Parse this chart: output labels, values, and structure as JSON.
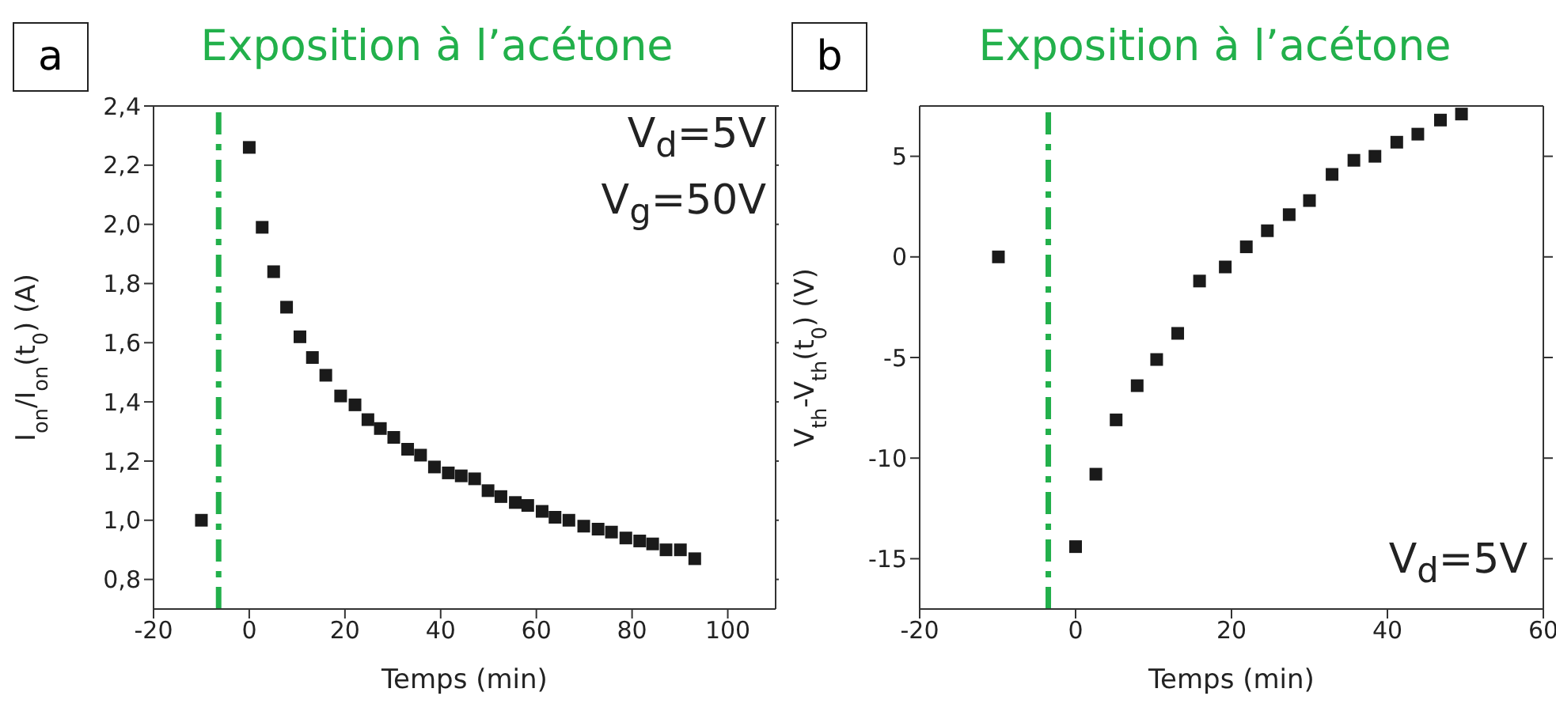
{
  "chart_data": [
    {
      "type": "scatter",
      "title": "Exposition à l’acétone",
      "xlabel": "Temps (min)",
      "ylabel": "I$_{on}$/I$_{on}$(t$_{0}$) (A)",
      "annotations": [
        "a",
        "V$_{d}$=5V",
        "V$_{g}$=50V"
      ],
      "xlim": [
        -20,
        110
      ],
      "xticks": [
        -20,
        0,
        20,
        40,
        60,
        80,
        100
      ],
      "ylim": [
        0.7,
        2.4
      ],
      "yticks": [
        {
          "value": 0.8,
          "label": "0,8"
        },
        {
          "value": 1.0,
          "label": "1,0"
        },
        {
          "value": 1.2,
          "label": "1,2"
        },
        {
          "value": 1.4,
          "label": "1,4"
        },
        {
          "value": 1.6,
          "label": "1,6"
        },
        {
          "value": 1.8,
          "label": "1,8"
        },
        {
          "value": 2.0,
          "label": "2,0"
        },
        {
          "value": 2.2,
          "label": "2,2"
        },
        {
          "value": 2.4,
          "label": "2,4"
        }
      ],
      "marker": "square",
      "ref_lines": [
        {
          "axis": "x",
          "value": -6.4,
          "color": "#22b04b",
          "line_style": "dashdot"
        }
      ],
      "series": [
        {
          "color": "#1a1a1a",
          "x": [
            -10,
            0,
            2.7,
            5.1,
            7.8,
            10.6,
            13.2,
            16,
            19.1,
            22.1,
            24.8,
            27.4,
            30.2,
            33.1,
            35.8,
            38.7,
            41.6,
            44.3,
            47.1,
            49.9,
            52.6,
            55.6,
            58.2,
            61.2,
            63.9,
            66.8,
            69.9,
            72.9,
            75.7,
            78.7,
            81.6,
            84.3,
            87.1,
            90.1,
            93.1
          ],
          "values": [
            1.0,
            2.26,
            1.99,
            1.84,
            1.72,
            1.62,
            1.55,
            1.49,
            1.42,
            1.39,
            1.34,
            1.31,
            1.28,
            1.24,
            1.22,
            1.18,
            1.16,
            1.15,
            1.14,
            1.1,
            1.08,
            1.06,
            1.05,
            1.03,
            1.01,
            1.0,
            0.98,
            0.97,
            0.96,
            0.94,
            0.93,
            0.92,
            0.9,
            0.9,
            0.87
          ]
        }
      ]
    },
    {
      "type": "scatter",
      "title": "Exposition à l’acétone",
      "xlabel": "Temps (min)",
      "ylabel": "V$_{th}$-V$_{th}$(t$_{0}$) (V)",
      "annotations": [
        "b",
        "V$_{d}$=5V"
      ],
      "xlim": [
        -20,
        60
      ],
      "xticks": [
        -20,
        0,
        20,
        40,
        60
      ],
      "ylim": [
        -17.5,
        7.5
      ],
      "yticks": [
        -15,
        -10,
        -5,
        0,
        5
      ],
      "marker": "square",
      "ref_lines": [
        {
          "axis": "x",
          "value": -3.5,
          "color": "#22b04b",
          "line_style": "dashdot"
        }
      ],
      "series": [
        {
          "color": "#1a1a1a",
          "x": [
            -9.9,
            0,
            2.6,
            5.2,
            7.9,
            10.4,
            13.1,
            15.9,
            19.2,
            21.9,
            24.6,
            27.4,
            30,
            32.9,
            35.7,
            38.4,
            41.2,
            43.9,
            46.8,
            49.5
          ],
          "values": [
            0.0,
            -14.4,
            -10.8,
            -8.1,
            -6.4,
            -5.1,
            -3.8,
            -1.2,
            -0.5,
            0.5,
            1.3,
            2.1,
            2.8,
            4.1,
            4.8,
            5.0,
            5.7,
            6.1,
            6.8,
            7.1
          ]
        }
      ]
    }
  ]
}
